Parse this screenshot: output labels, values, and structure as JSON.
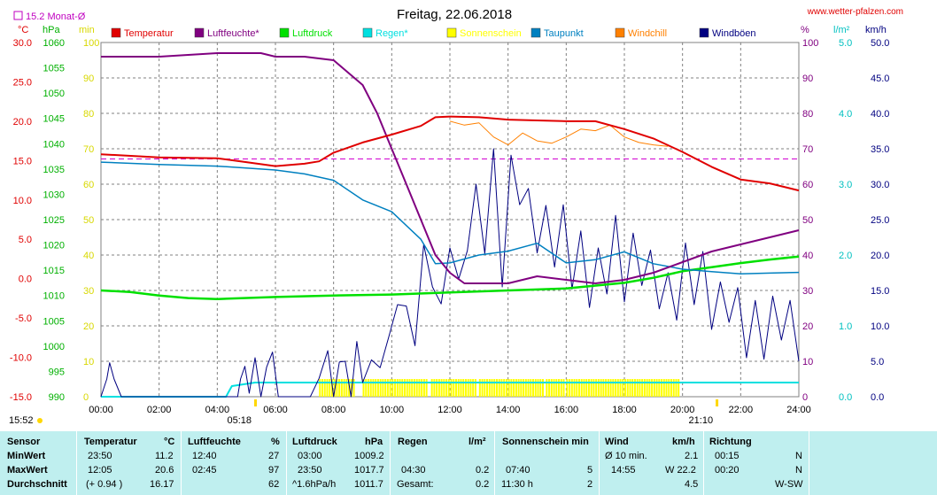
{
  "header": {
    "title": "Freitag, 22.06.2018",
    "site": "www.wetter-pfalzen.com",
    "monat_label": "15.2 Monat-Ø",
    "sunrise": "05:18",
    "sunset": "21:10",
    "time_left": "15:52"
  },
  "axes": {
    "temp": {
      "unit": "°C",
      "ticks": [
        "30.0",
        "25.0",
        "20.0",
        "15.0",
        "10.0",
        "5.0",
        "0.0",
        "-5.0",
        "-10.0",
        "-15.0"
      ]
    },
    "press": {
      "unit": "hPa",
      "ticks": [
        "1060",
        "1055",
        "1050",
        "1045",
        "1040",
        "1035",
        "1030",
        "1025",
        "1020",
        "1015",
        "1010",
        "1005",
        "1000",
        "995",
        "990"
      ]
    },
    "sun": {
      "unit": "min",
      "ticks": [
        "100",
        "90",
        "80",
        "70",
        "60",
        "50",
        "40",
        "30",
        "20",
        "10",
        "0"
      ]
    },
    "hum": {
      "unit": "%",
      "ticks": [
        "100",
        "90",
        "80",
        "70",
        "60",
        "50",
        "40",
        "30",
        "20",
        "10",
        "0"
      ]
    },
    "rain": {
      "unit": "l/m²",
      "ticks": [
        "5.0",
        "4.0",
        "3.0",
        "2.0",
        "1.0",
        "0.0"
      ]
    },
    "wind": {
      "unit": "km/h",
      "ticks": [
        "50.0",
        "45.0",
        "40.0",
        "35.0",
        "30.0",
        "25.0",
        "20.0",
        "15.0",
        "10.0",
        "5.0",
        "0.0"
      ]
    },
    "x_ticks": [
      "00:00",
      "02:00",
      "04:00",
      "06:00",
      "08:00",
      "10:00",
      "12:00",
      "14:00",
      "16:00",
      "18:00",
      "20:00",
      "22:00",
      "24:00"
    ]
  },
  "legend": [
    {
      "label": "Temperatur",
      "color": "#e00000"
    },
    {
      "label": "Luftfeuchte*",
      "color": "#800080"
    },
    {
      "label": "Luftdruck",
      "color": "#00e000"
    },
    {
      "label": "Regen*",
      "color": "#00e0e0"
    },
    {
      "label": "Sonnenschein",
      "color": "#ffff00"
    },
    {
      "label": "Taupunkt",
      "color": "#0080c0"
    },
    {
      "label": "Windchill",
      "color": "#ff8000"
    },
    {
      "label": "Windböen",
      "color": "#000080"
    }
  ],
  "chart_data": {
    "type": "line",
    "title": "Freitag, 22.06.2018",
    "x_unit": "hours",
    "monthly_avg_temp": 15.2,
    "series": [
      {
        "name": "Temperatur",
        "unit": "°C",
        "x": [
          0,
          2,
          4,
          5,
          6,
          7,
          7.5,
          8,
          9,
          10,
          11,
          11.5,
          12,
          13,
          14,
          15,
          16,
          17,
          18,
          19,
          20,
          21,
          22,
          23,
          24
        ],
        "y": [
          15.8,
          15.4,
          15.3,
          14.8,
          14.3,
          14.6,
          14.9,
          16.0,
          17.3,
          18.3,
          19.4,
          20.5,
          20.6,
          20.5,
          20.2,
          20.1,
          20.0,
          20.0,
          19.0,
          17.8,
          16.1,
          14.2,
          12.6,
          12.1,
          11.2
        ]
      },
      {
        "name": "Luftfeuchte*",
        "unit": "%",
        "x": [
          0,
          2,
          4,
          4.5,
          5,
          5.5,
          6,
          7,
          8,
          9,
          9.5,
          10,
          10.5,
          11,
          11.5,
          12,
          12.5,
          13,
          14,
          15,
          16,
          17,
          18,
          19,
          20,
          21,
          22,
          23,
          24
        ],
        "y": [
          96,
          96,
          97,
          97,
          97,
          97,
          96,
          96,
          95,
          88,
          80,
          70,
          60,
          50,
          40,
          35,
          32,
          32,
          32,
          34,
          33,
          32,
          33,
          35,
          38,
          41,
          43,
          45,
          47
        ]
      },
      {
        "name": "Luftdruck",
        "unit": "hPa",
        "x": [
          0,
          1,
          2,
          3,
          4,
          6,
          8,
          10,
          12,
          14,
          16,
          18,
          19,
          20,
          21,
          22,
          23,
          24
        ],
        "y": [
          1011.0,
          1010.7,
          1010.0,
          1009.5,
          1009.3,
          1009.7,
          1010.0,
          1010.2,
          1010.6,
          1011.0,
          1011.4,
          1012.5,
          1013.5,
          1014.8,
          1015.6,
          1016.4,
          1017.1,
          1017.7
        ]
      },
      {
        "name": "Regen*",
        "unit": "l/m²",
        "x": [
          0,
          4.3,
          4.5,
          5.3,
          24
        ],
        "y": [
          0,
          0,
          0.15,
          0.2,
          0.2
        ]
      },
      {
        "name": "Taupunkt",
        "unit": "°C",
        "x": [
          0,
          2,
          4,
          6,
          7,
          8,
          9,
          10,
          11,
          11.5,
          12,
          13,
          14,
          15,
          16,
          17,
          18,
          19,
          20,
          21,
          22,
          23,
          24
        ],
        "y": [
          14.8,
          14.5,
          14.3,
          13.8,
          13.3,
          12.5,
          10.0,
          8.5,
          5.0,
          1.9,
          2.0,
          3.0,
          3.5,
          4.5,
          2.0,
          2.4,
          3.4,
          1.9,
          1.2,
          0.9,
          0.6,
          0.7,
          0.8
        ]
      },
      {
        "name": "Windchill",
        "unit": "°C",
        "x": [
          12,
          12.5,
          13,
          13.5,
          14,
          14.5,
          15,
          15.5,
          16,
          16.5,
          17,
          17.5,
          18,
          18.5,
          19,
          19.5
        ],
        "y": [
          20.0,
          19.5,
          19.8,
          18.0,
          17.0,
          18.5,
          17.5,
          17.2,
          18.0,
          19.0,
          18.8,
          19.5,
          18.0,
          17.3,
          17.0,
          16.8
        ]
      },
      {
        "name": "Windböen",
        "unit": "km/h",
        "x": [
          0,
          0.2,
          0.3,
          0.45,
          0.7,
          4.7,
          4.8,
          4.95,
          5.1,
          5.3,
          5.5,
          5.7,
          5.9,
          6.1,
          6.3,
          6.5,
          6.8,
          7.2,
          7.5,
          7.8,
          8.0,
          8.2,
          8.4,
          8.6,
          8.8,
          9.0,
          9.3,
          9.6,
          9.9,
          10.2,
          10.5,
          10.8,
          11.1,
          11.4,
          11.7,
          12.0,
          12.3,
          12.6,
          12.9,
          13.2,
          13.5,
          13.8,
          14.1,
          14.4,
          14.7,
          15.0,
          15.3,
          15.6,
          15.9,
          16.2,
          16.5,
          16.8,
          17.1,
          17.4,
          17.7,
          18.0,
          18.3,
          18.6,
          18.9,
          19.2,
          19.5,
          19.8,
          20.1,
          20.4,
          20.7,
          21.0,
          21.3,
          21.6,
          21.9,
          22.2,
          22.5,
          22.8,
          23.1,
          23.4,
          23.7,
          24.0
        ],
        "y": [
          0,
          2.5,
          4.8,
          2.5,
          0,
          0,
          2.5,
          4.3,
          0.5,
          5.5,
          0,
          4.2,
          6.3,
          0,
          0,
          0,
          0,
          0,
          2.6,
          6.5,
          0,
          4.9,
          5.0,
          0,
          7.8,
          2.0,
          5.2,
          4.1,
          8.5,
          13.0,
          12.8,
          7.2,
          21.5,
          15.5,
          13.1,
          21.0,
          16.6,
          20.6,
          30.0,
          20.2,
          35.0,
          15.5,
          34.1,
          27.1,
          29.4,
          20.3,
          27.0,
          18.3,
          27.1,
          15.2,
          23.4,
          12.6,
          21.0,
          14.5,
          25.6,
          13.4,
          23.1,
          15.7,
          20.7,
          12.4,
          17.5,
          10.8,
          21.7,
          13.0,
          20.5,
          9.5,
          16.2,
          10.5,
          15.4,
          5.5,
          13.6,
          5.3,
          14.2,
          8.0,
          13.6,
          5.0
        ]
      }
    ],
    "sun_minutes_hours": [
      "07:40",
      "11:30"
    ],
    "x_ticks": [
      "00:00",
      "02:00",
      "04:00",
      "06:00",
      "08:00",
      "10:00",
      "12:00",
      "14:00",
      "16:00",
      "18:00",
      "20:00",
      "22:00",
      "24:00"
    ]
  },
  "stats": {
    "headers": {
      "sensor": "Sensor",
      "temp": "Temperatur",
      "temp_unit": "°C",
      "hum": "Luftfeuchte",
      "hum_unit": "%",
      "press": "Luftdruck",
      "press_unit": "hPa",
      "rain": "Regen",
      "rain_unit": "l/m²",
      "sun": "Sonnenschein min",
      "wind": "Wind",
      "wind_unit": "km/h",
      "dir": "Richtung"
    },
    "rows": [
      {
        "label": "MinWert",
        "t_time": "23:50",
        "t_val": "11.2",
        "h_time": "12:40",
        "h_val": "27",
        "p_time": "03:00",
        "p_val": "1009.2",
        "r_time": "",
        "r_val": "",
        "s_time": "",
        "s_val": "",
        "w_time": "Ø 10 min.",
        "w_val": "2.1",
        "d_time": "00:15",
        "d_val": "N"
      },
      {
        "label": "MaxWert",
        "t_time": "12:05",
        "t_val": "20.6",
        "h_time": "02:45",
        "h_val": "97",
        "p_time": "23:50",
        "p_val": "1017.7",
        "r_time": "04:30",
        "r_val": "0.2",
        "s_time": "07:40",
        "s_val": "5",
        "w_time": "14:55",
        "w_val": "W 22.2",
        "d_time": "00:20",
        "d_val": "N"
      },
      {
        "label": "Durchschnitt",
        "t_time": "(+ 0.94 )",
        "t_val": "16.17",
        "h_time": "",
        "h_val": "62",
        "p_time": "^1.6hPa/h",
        "p_val": "1011.7",
        "r_time": "Gesamt:",
        "r_val": "0.2",
        "s_time": "11:30 h",
        "s_val": "2",
        "w_time": "",
        "w_val": "4.5",
        "d_time": "",
        "d_val": "W-SW"
      }
    ]
  }
}
